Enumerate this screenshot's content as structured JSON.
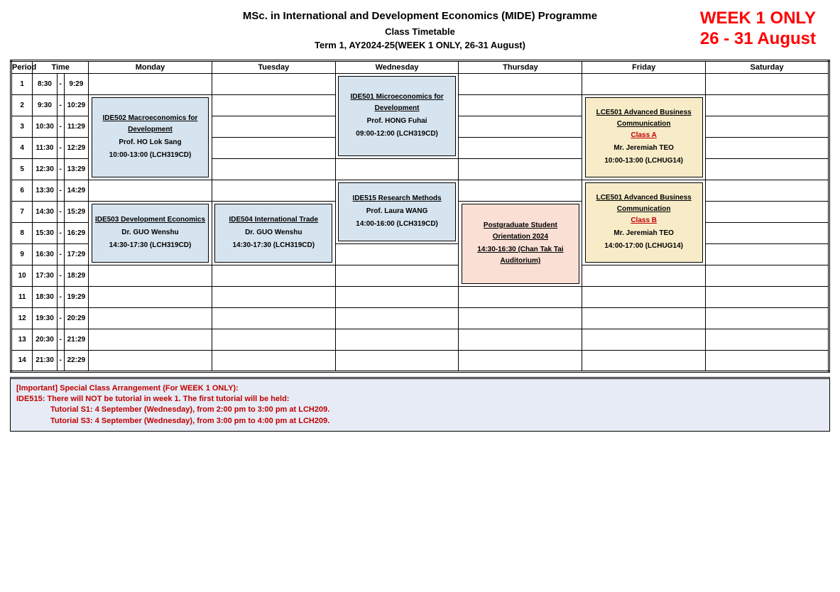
{
  "header": {
    "line1": "MSc. in International and Development Economics (MIDE) Programme",
    "line2": "Class Timetable",
    "line3": "Term 1, AY2024-25(WEEK 1 ONLY, 26-31 August)",
    "banner_line1": "WEEK 1 ONLY",
    "banner_line2": "26 - 31 August",
    "banner_color": "#ff0000"
  },
  "columns": {
    "period": "Period",
    "time": "Time",
    "days": [
      "Monday",
      "Tuesday",
      "Wednesday",
      "Thursday",
      "Friday",
      "Saturday"
    ]
  },
  "periods": [
    {
      "n": "1",
      "start": "8:30",
      "end": "9:29"
    },
    {
      "n": "2",
      "start": "9:30",
      "end": "10:29"
    },
    {
      "n": "3",
      "start": "10:30",
      "end": "11:29"
    },
    {
      "n": "4",
      "start": "11:30",
      "end": "12:29"
    },
    {
      "n": "5",
      "start": "12:30",
      "end": "13:29"
    },
    {
      "n": "6",
      "start": "13:30",
      "end": "14:29"
    },
    {
      "n": "7",
      "start": "14:30",
      "end": "15:29"
    },
    {
      "n": "8",
      "start": "15:30",
      "end": "16:29"
    },
    {
      "n": "9",
      "start": "16:30",
      "end": "17:29"
    },
    {
      "n": "10",
      "start": "17:30",
      "end": "18:29"
    },
    {
      "n": "11",
      "start": "18:30",
      "end": "19:29"
    },
    {
      "n": "12",
      "start": "19:30",
      "end": "20:29"
    },
    {
      "n": "13",
      "start": "20:30",
      "end": "21:29"
    },
    {
      "n": "14",
      "start": "21:30",
      "end": "22:29"
    }
  ],
  "colors": {
    "blue": "#d6e4ef",
    "yellow": "#f8ecc8",
    "pink": "#fadfd5",
    "notice_bg": "#e6ebf5",
    "red_text": "#c00000"
  },
  "events": [
    {
      "id": "mon-ide502",
      "day": 0,
      "start": 2,
      "span": 4,
      "bg": "blue",
      "title": "IDE502 Macroeconomics for Development",
      "extra": "",
      "instr": "Prof. HO Lok Sang",
      "time": "10:00-13:00 (LCH319CD)"
    },
    {
      "id": "mon-ide503",
      "day": 0,
      "start": 7,
      "span": 3,
      "bg": "blue",
      "title": "IDE503 Development Economics",
      "extra": "",
      "instr": "Dr. GUO Wenshu",
      "time": "14:30-17:30 (LCH319CD)"
    },
    {
      "id": "tue-ide504",
      "day": 1,
      "start": 7,
      "span": 3,
      "bg": "blue",
      "title": "IDE504 International Trade",
      "extra": "",
      "instr": "Dr. GUO Wenshu",
      "time": "14:30-17:30 (LCH319CD)"
    },
    {
      "id": "wed-ide501",
      "day": 2,
      "start": 1,
      "span": 4,
      "bg": "blue",
      "title": "IDE501 Microeconomics for Development",
      "extra": "",
      "instr": "Prof. HONG Fuhai",
      "time": "09:00-12:00 (LCH319CD)"
    },
    {
      "id": "wed-ide515",
      "day": 2,
      "start": 6,
      "span": 3,
      "bg": "blue",
      "title": "IDE515 Research Methods",
      "extra": "",
      "instr": "Prof. Laura WANG",
      "time": "14:00-16:00 (LCH319CD)"
    },
    {
      "id": "thu-orient",
      "day": 3,
      "start": 7,
      "span": 4,
      "bg": "pink",
      "title": "Postgraduate Student Orientation 2024",
      "extra": "",
      "instr": "",
      "time": "14:30-16:30 (Chan Tak Tai Auditorium)",
      "time_underline": true
    },
    {
      "id": "fri-lce501a",
      "day": 4,
      "start": 2,
      "span": 4,
      "bg": "yellow",
      "title": "LCE501 Advanced Business Communication",
      "extra": "Class A",
      "instr": "Mr. Jeremiah TEO",
      "time": "10:00-13:00 (LCHUG14)"
    },
    {
      "id": "fri-lce501b",
      "day": 4,
      "start": 6,
      "span": 4,
      "bg": "yellow",
      "title": "LCE501 Advanced Business Communication",
      "extra": "Class B",
      "instr": "Mr. Jeremiah TEO",
      "time": "14:00-17:00 (LCHUG14)"
    }
  ],
  "notice": {
    "line1": "[Important] Special Class Arrangement (For WEEK 1 ONLY):",
    "line2": "IDE515: There will NOT be tutorial in week 1. The first tutorial will be held:",
    "line3": "Tutorial S1: 4 September (Wednesday), from 2:00 pm to 3:00 pm at LCH209.",
    "line4": "Tutorial S3: 4 September (Wednesday), from 3:00 pm to 4:00 pm at LCH209."
  }
}
